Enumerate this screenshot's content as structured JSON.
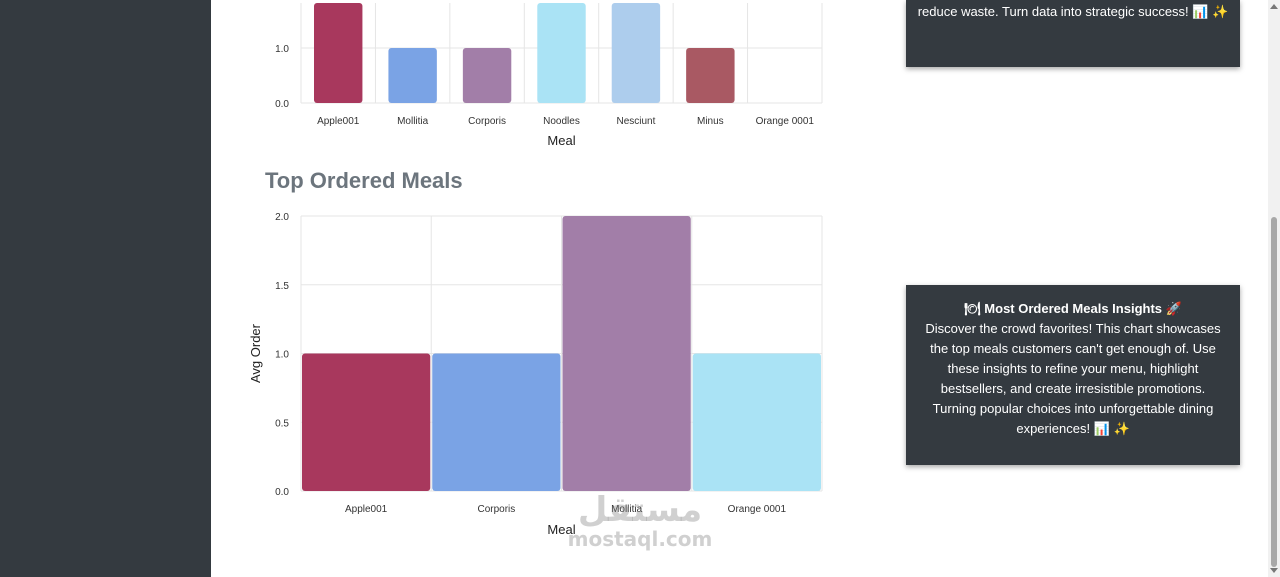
{
  "chart_data": [
    {
      "type": "bar",
      "title": "",
      "xlabel": "Meal",
      "ylabel": "",
      "categories": [
        "Apple001",
        "Mollitia",
        "Corporis",
        "Noodles",
        "Nesciunt",
        "Minus",
        "Orange 0001"
      ],
      "values": [
        2,
        1,
        1,
        2,
        2,
        1,
        0
      ],
      "colors": [
        "#a8385d",
        "#7aa3e5",
        "#a27ea8",
        "#aae3f5",
        "#adcded",
        "#a95963",
        "#8796c0"
      ],
      "y_ticks": [
        "0.0",
        "1.0"
      ],
      "y_tick_values": [
        0,
        1
      ],
      "ylim": [
        0,
        2
      ],
      "grid": true
    },
    {
      "type": "bar",
      "title": "Top Ordered Meals",
      "xlabel": "Meal",
      "ylabel": "Avg Order",
      "categories": [
        "Apple001",
        "Corporis",
        "Mollitia",
        "Orange 0001"
      ],
      "values": [
        1,
        1,
        2,
        1
      ],
      "colors": [
        "#a8385d",
        "#7aa3e5",
        "#a27ea8",
        "#aae3f5"
      ],
      "y_ticks": [
        "0.0",
        "0.5",
        "1.0",
        "1.5",
        "2.0"
      ],
      "y_tick_values": [
        0,
        0.5,
        1,
        1.5,
        2
      ],
      "ylim": [
        0,
        2
      ],
      "grid": true
    }
  ],
  "cards": {
    "top_text": "reduce waste. Turn data into strategic success! 📊 ✨",
    "insights_title": "🍽 Most Ordered Meals Insights 🚀",
    "insights_body": "Discover the crowd favorites! This chart showcases the top meals customers can't get enough of. Use these insights to refine your menu, highlight bestsellers, and create irresistible promotions. Turning popular choices into unforgettable dining experiences! 📊 ✨"
  },
  "watermark": {
    "arabic": "مستقل",
    "latin": "mostaql.com"
  },
  "theme": {
    "sidebar_bg": "#343a40",
    "card_bg": "#343a40",
    "title_color": "#6c757d"
  }
}
